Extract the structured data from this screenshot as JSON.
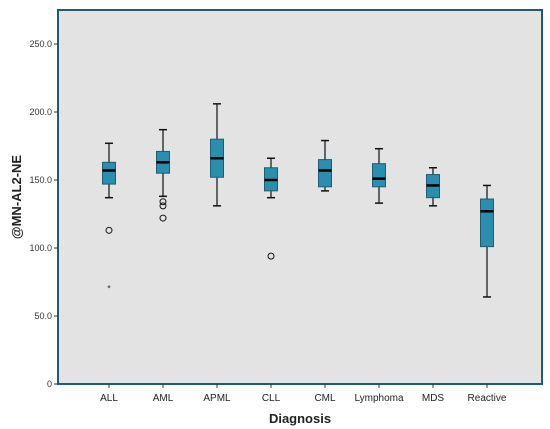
{
  "chart_data": {
    "type": "boxplot",
    "xlabel": "Diagnosis",
    "ylabel": "@MN-AL2-NE",
    "ylim": [
      0,
      275
    ],
    "yticks": [
      0,
      50,
      100,
      150,
      200,
      250
    ],
    "ytick_labels": [
      "0",
      "50.0",
      "100.0",
      "150.0",
      "200.0",
      "250.0"
    ],
    "grid": false,
    "legend": "none",
    "colors": {
      "plot_background": "#e3e3e3",
      "frame": "#1f5c73",
      "box_fill": "#2a8fae",
      "box_stroke": "#1f5c73",
      "median": "#000000",
      "whisker": "#111111"
    },
    "categories": [
      "ALL",
      "AML",
      "APML",
      "CLL",
      "CML",
      "Lymphoma",
      "MDS",
      "Reactive"
    ],
    "boxes": [
      {
        "category": "ALL",
        "whisker_low": 137,
        "q1": 147,
        "median": 157,
        "q3": 163,
        "whisker_high": 177,
        "outliers": [
          113
        ],
        "extremes": [
          71
        ]
      },
      {
        "category": "AML",
        "whisker_low": 138,
        "q1": 155,
        "median": 163,
        "q3": 171,
        "whisker_high": 187,
        "outliers": [
          134,
          131,
          122
        ],
        "extremes": []
      },
      {
        "category": "APML",
        "whisker_low": 131,
        "q1": 152,
        "median": 166,
        "q3": 180,
        "whisker_high": 206,
        "outliers": [],
        "extremes": []
      },
      {
        "category": "CLL",
        "whisker_low": 137,
        "q1": 142,
        "median": 150,
        "q3": 159,
        "whisker_high": 166,
        "outliers": [
          94
        ],
        "extremes": []
      },
      {
        "category": "CML",
        "whisker_low": 142,
        "q1": 145,
        "median": 157,
        "q3": 165,
        "whisker_high": 179,
        "outliers": [],
        "extremes": []
      },
      {
        "category": "Lymphoma",
        "whisker_low": 133,
        "q1": 145,
        "median": 151,
        "q3": 162,
        "whisker_high": 173,
        "outliers": [],
        "extremes": []
      },
      {
        "category": "MDS",
        "whisker_low": 131,
        "q1": 137,
        "median": 146,
        "q3": 154,
        "whisker_high": 159,
        "outliers": [],
        "extremes": []
      },
      {
        "category": "Reactive",
        "whisker_low": 64,
        "q1": 101,
        "median": 127,
        "q3": 136,
        "whisker_high": 146,
        "outliers": [],
        "extremes": []
      }
    ]
  }
}
